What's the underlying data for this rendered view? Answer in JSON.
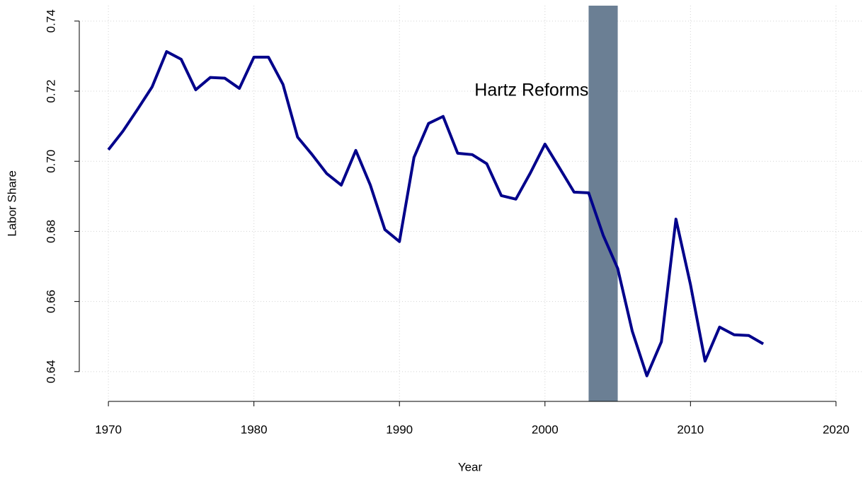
{
  "chart_data": {
    "type": "line",
    "x_label": "Year",
    "y_label": "Labor Share",
    "x": [
      1970,
      1971,
      1972,
      1973,
      1974,
      1975,
      1976,
      1977,
      1978,
      1979,
      1980,
      1981,
      1982,
      1983,
      1984,
      1985,
      1986,
      1987,
      1988,
      1989,
      1990,
      1991,
      1992,
      1993,
      1994,
      1995,
      1996,
      1997,
      1998,
      1999,
      2000,
      2001,
      2002,
      2003,
      2004,
      2005,
      2006,
      2007,
      2008,
      2009,
      2010,
      2011,
      2012,
      2013,
      2014,
      2015
    ],
    "series": [
      {
        "name": "Labor Share",
        "color": "#00008b",
        "values": [
          0.7033,
          0.7086,
          0.7148,
          0.7212,
          0.7313,
          0.7291,
          0.7204,
          0.7239,
          0.7237,
          0.7208,
          0.7297,
          0.7297,
          0.7219,
          0.7069,
          0.7019,
          0.6965,
          0.6932,
          0.7031,
          0.6932,
          0.6805,
          0.6771,
          0.7011,
          0.7108,
          0.7128,
          0.7023,
          0.7019,
          0.6993,
          0.6902,
          0.6892,
          0.6967,
          0.7049,
          0.6981,
          0.6912,
          0.691,
          0.6789,
          0.6694,
          0.6515,
          0.6388,
          0.6485,
          0.6835,
          0.6648,
          0.643,
          0.6527,
          0.6505,
          0.6503,
          0.6479
        ]
      }
    ],
    "xlim": [
      1968,
      2022
    ],
    "ylim": [
      0.6315,
      0.7444
    ],
    "xticks": [
      1970,
      1980,
      1990,
      2000,
      2010,
      2020
    ],
    "yticks": [
      {
        "value": 0.64,
        "label": "0.64"
      },
      {
        "value": 0.66,
        "label": "0.66"
      },
      {
        "value": 0.68,
        "label": "0.68"
      },
      {
        "value": 0.7,
        "label": "0.70"
      },
      {
        "value": 0.72,
        "label": "0.72"
      },
      {
        "value": 0.74,
        "label": "0.74"
      }
    ],
    "grid": true,
    "shade": {
      "x": [
        2003,
        2005
      ],
      "color": "#6b7f94"
    },
    "annotation": {
      "text": "Hartz Reforms",
      "x": 2003,
      "y": 0.72
    }
  }
}
